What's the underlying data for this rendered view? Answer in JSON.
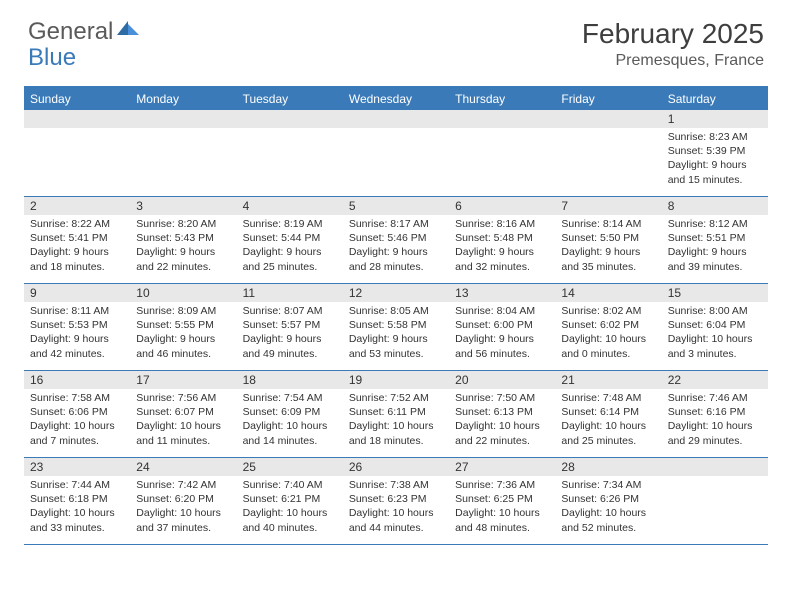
{
  "logo": {
    "word1": "General",
    "word2": "Blue"
  },
  "title": "February 2025",
  "location": "Premesques, France",
  "colors": {
    "brand_blue": "#3a7ab8",
    "header_text": "#3e3e3e",
    "body_text": "#333333",
    "daynum_bg": "#e8e8e8",
    "background": "#ffffff"
  },
  "weekdays": [
    "Sunday",
    "Monday",
    "Tuesday",
    "Wednesday",
    "Thursday",
    "Friday",
    "Saturday"
  ],
  "weeks": [
    [
      null,
      null,
      null,
      null,
      null,
      null,
      {
        "n": "1",
        "sunrise": "Sunrise: 8:23 AM",
        "sunset": "Sunset: 5:39 PM",
        "daylight": "Daylight: 9 hours and 15 minutes."
      }
    ],
    [
      {
        "n": "2",
        "sunrise": "Sunrise: 8:22 AM",
        "sunset": "Sunset: 5:41 PM",
        "daylight": "Daylight: 9 hours and 18 minutes."
      },
      {
        "n": "3",
        "sunrise": "Sunrise: 8:20 AM",
        "sunset": "Sunset: 5:43 PM",
        "daylight": "Daylight: 9 hours and 22 minutes."
      },
      {
        "n": "4",
        "sunrise": "Sunrise: 8:19 AM",
        "sunset": "Sunset: 5:44 PM",
        "daylight": "Daylight: 9 hours and 25 minutes."
      },
      {
        "n": "5",
        "sunrise": "Sunrise: 8:17 AM",
        "sunset": "Sunset: 5:46 PM",
        "daylight": "Daylight: 9 hours and 28 minutes."
      },
      {
        "n": "6",
        "sunrise": "Sunrise: 8:16 AM",
        "sunset": "Sunset: 5:48 PM",
        "daylight": "Daylight: 9 hours and 32 minutes."
      },
      {
        "n": "7",
        "sunrise": "Sunrise: 8:14 AM",
        "sunset": "Sunset: 5:50 PM",
        "daylight": "Daylight: 9 hours and 35 minutes."
      },
      {
        "n": "8",
        "sunrise": "Sunrise: 8:12 AM",
        "sunset": "Sunset: 5:51 PM",
        "daylight": "Daylight: 9 hours and 39 minutes."
      }
    ],
    [
      {
        "n": "9",
        "sunrise": "Sunrise: 8:11 AM",
        "sunset": "Sunset: 5:53 PM",
        "daylight": "Daylight: 9 hours and 42 minutes."
      },
      {
        "n": "10",
        "sunrise": "Sunrise: 8:09 AM",
        "sunset": "Sunset: 5:55 PM",
        "daylight": "Daylight: 9 hours and 46 minutes."
      },
      {
        "n": "11",
        "sunrise": "Sunrise: 8:07 AM",
        "sunset": "Sunset: 5:57 PM",
        "daylight": "Daylight: 9 hours and 49 minutes."
      },
      {
        "n": "12",
        "sunrise": "Sunrise: 8:05 AM",
        "sunset": "Sunset: 5:58 PM",
        "daylight": "Daylight: 9 hours and 53 minutes."
      },
      {
        "n": "13",
        "sunrise": "Sunrise: 8:04 AM",
        "sunset": "Sunset: 6:00 PM",
        "daylight": "Daylight: 9 hours and 56 minutes."
      },
      {
        "n": "14",
        "sunrise": "Sunrise: 8:02 AM",
        "sunset": "Sunset: 6:02 PM",
        "daylight": "Daylight: 10 hours and 0 minutes."
      },
      {
        "n": "15",
        "sunrise": "Sunrise: 8:00 AM",
        "sunset": "Sunset: 6:04 PM",
        "daylight": "Daylight: 10 hours and 3 minutes."
      }
    ],
    [
      {
        "n": "16",
        "sunrise": "Sunrise: 7:58 AM",
        "sunset": "Sunset: 6:06 PM",
        "daylight": "Daylight: 10 hours and 7 minutes."
      },
      {
        "n": "17",
        "sunrise": "Sunrise: 7:56 AM",
        "sunset": "Sunset: 6:07 PM",
        "daylight": "Daylight: 10 hours and 11 minutes."
      },
      {
        "n": "18",
        "sunrise": "Sunrise: 7:54 AM",
        "sunset": "Sunset: 6:09 PM",
        "daylight": "Daylight: 10 hours and 14 minutes."
      },
      {
        "n": "19",
        "sunrise": "Sunrise: 7:52 AM",
        "sunset": "Sunset: 6:11 PM",
        "daylight": "Daylight: 10 hours and 18 minutes."
      },
      {
        "n": "20",
        "sunrise": "Sunrise: 7:50 AM",
        "sunset": "Sunset: 6:13 PM",
        "daylight": "Daylight: 10 hours and 22 minutes."
      },
      {
        "n": "21",
        "sunrise": "Sunrise: 7:48 AM",
        "sunset": "Sunset: 6:14 PM",
        "daylight": "Daylight: 10 hours and 25 minutes."
      },
      {
        "n": "22",
        "sunrise": "Sunrise: 7:46 AM",
        "sunset": "Sunset: 6:16 PM",
        "daylight": "Daylight: 10 hours and 29 minutes."
      }
    ],
    [
      {
        "n": "23",
        "sunrise": "Sunrise: 7:44 AM",
        "sunset": "Sunset: 6:18 PM",
        "daylight": "Daylight: 10 hours and 33 minutes."
      },
      {
        "n": "24",
        "sunrise": "Sunrise: 7:42 AM",
        "sunset": "Sunset: 6:20 PM",
        "daylight": "Daylight: 10 hours and 37 minutes."
      },
      {
        "n": "25",
        "sunrise": "Sunrise: 7:40 AM",
        "sunset": "Sunset: 6:21 PM",
        "daylight": "Daylight: 10 hours and 40 minutes."
      },
      {
        "n": "26",
        "sunrise": "Sunrise: 7:38 AM",
        "sunset": "Sunset: 6:23 PM",
        "daylight": "Daylight: 10 hours and 44 minutes."
      },
      {
        "n": "27",
        "sunrise": "Sunrise: 7:36 AM",
        "sunset": "Sunset: 6:25 PM",
        "daylight": "Daylight: 10 hours and 48 minutes."
      },
      {
        "n": "28",
        "sunrise": "Sunrise: 7:34 AM",
        "sunset": "Sunset: 6:26 PM",
        "daylight": "Daylight: 10 hours and 52 minutes."
      },
      null
    ]
  ]
}
